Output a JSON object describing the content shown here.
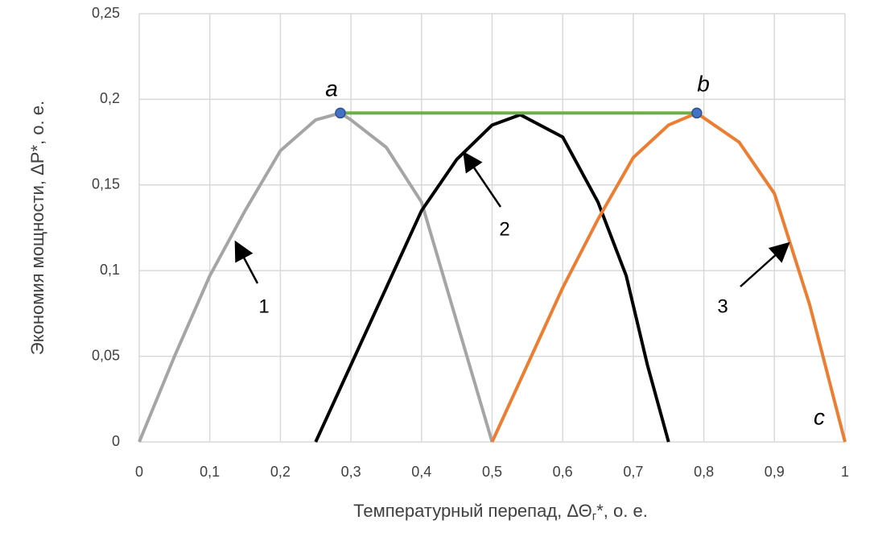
{
  "chart_data": {
    "type": "line",
    "xlabel": [
      "Температурный перепад, ΔΘ",
      "г",
      "*, о. е."
    ],
    "ylabel": "Экономия мощности, ΔP*, о. е.",
    "xlim": [
      0,
      1
    ],
    "ylim": [
      0,
      0.25
    ],
    "xticks": [
      0,
      {
        "value": 0.1,
        "label": "0,1"
      },
      {
        "value": 0.2,
        "label": "0,2"
      },
      {
        "value": 0.3,
        "label": "0,3"
      },
      {
        "value": 0.4,
        "label": "0,4"
      },
      {
        "value": 0.5,
        "label": "0,5"
      },
      {
        "value": 0.6,
        "label": "0,6"
      },
      {
        "value": 0.7,
        "label": "0,7"
      },
      {
        "value": 0.8,
        "label": "0,8"
      },
      {
        "value": 0.9,
        "label": "0,9"
      },
      1
    ],
    "yticks": [
      0,
      {
        "value": 0.05,
        "label": "0,05"
      },
      {
        "value": 0.1,
        "label": "0,1"
      },
      {
        "value": 0.15,
        "label": "0,15"
      },
      {
        "value": 0.2,
        "label": "0,2"
      },
      {
        "value": 0.25,
        "label": "0,25"
      }
    ],
    "grid": true,
    "series": [
      {
        "color": "#a5a5a5",
        "x": [
          0,
          0.05,
          0.1,
          0.15,
          0.2,
          0.25,
          0.285,
          0.3,
          0.35,
          0.4,
          0.45,
          0.5
        ],
        "values": [
          0,
          0.05,
          0.097,
          0.135,
          0.17,
          0.188,
          0.192,
          0.188,
          0.172,
          0.14,
          0.07,
          0
        ]
      },
      {
        "color": "#000000",
        "x": [
          0.25,
          0.3,
          0.35,
          0.4,
          0.45,
          0.5,
          0.54,
          0.6,
          0.65,
          0.69,
          0.72,
          0.75
        ],
        "values": [
          0,
          0.045,
          0.09,
          0.135,
          0.165,
          0.185,
          0.191,
          0.178,
          0.14,
          0.097,
          0.045,
          0
        ]
      },
      {
        "color": "#ed7d31",
        "x": [
          0.5,
          0.55,
          0.6,
          0.65,
          0.7,
          0.75,
          0.79,
          0.85,
          0.9,
          0.95,
          1
        ],
        "values": [
          0,
          0.045,
          0.09,
          0.13,
          0.166,
          0.185,
          0.192,
          0.175,
          0.145,
          0.08,
          0
        ]
      },
      {
        "color": "#70ad47",
        "x": [
          0.285,
          0.79
        ],
        "values": [
          0.192,
          0.192
        ]
      }
    ],
    "points": {
      "color": "#4472c4",
      "x": [
        0.285,
        0.79
      ],
      "values": [
        0.192,
        0.192
      ]
    },
    "annotations": [
      "a",
      "b",
      "c",
      "1",
      "2",
      "3"
    ]
  }
}
